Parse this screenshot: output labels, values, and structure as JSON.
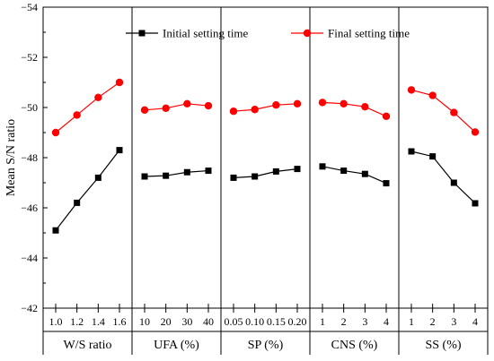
{
  "chart_data": {
    "type": "line",
    "ylabel": "Mean S/N ratio",
    "ylim": [
      -54,
      -42
    ],
    "y_ticks": [
      -54,
      -52,
      -50,
      -48,
      -46,
      -44,
      -42
    ],
    "y_inverted": true,
    "legend_position": "top",
    "series": [
      {
        "name": "Initial setting time",
        "marker": "square",
        "color": "#000000"
      },
      {
        "name": "Final setting time",
        "marker": "circle",
        "color": "#ff0000"
      }
    ],
    "groups": [
      {
        "label": "W/S ratio",
        "categories": [
          "1.0",
          "1.2",
          "1.4",
          "1.6"
        ],
        "initial": [
          -45.1,
          -46.2,
          -47.2,
          -48.3
        ],
        "final": [
          -49.0,
          -49.7,
          -50.4,
          -51.0
        ]
      },
      {
        "label": "UFA (%)",
        "categories": [
          "10",
          "20",
          "30",
          "40"
        ],
        "initial": [
          -47.25,
          -47.28,
          -47.42,
          -47.48
        ],
        "final": [
          -49.9,
          -49.97,
          -50.15,
          -50.07
        ]
      },
      {
        "label": "SP (%)",
        "categories": [
          "0.05",
          "0.10",
          "0.15",
          "0.20"
        ],
        "initial": [
          -47.2,
          -47.25,
          -47.45,
          -47.55
        ],
        "final": [
          -49.85,
          -49.92,
          -50.1,
          -50.15
        ]
      },
      {
        "label": "CNS (%)",
        "categories": [
          "1",
          "2",
          "3",
          "4"
        ],
        "initial": [
          -47.65,
          -47.48,
          -47.35,
          -46.98
        ],
        "final": [
          -50.2,
          -50.15,
          -50.03,
          -49.65
        ]
      },
      {
        "label": "SS (%)",
        "categories": [
          "1",
          "2",
          "3",
          "4"
        ],
        "initial": [
          -48.25,
          -48.05,
          -47.0,
          -46.18
        ],
        "final": [
          -50.7,
          -50.48,
          -49.8,
          -49.02
        ]
      }
    ]
  }
}
